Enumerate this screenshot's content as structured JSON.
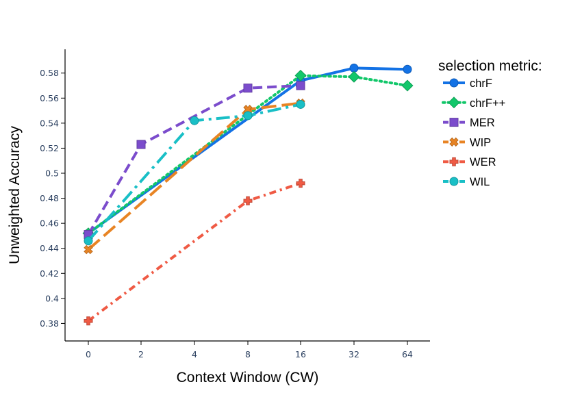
{
  "chart_data": {
    "type": "line",
    "title": "",
    "xlabel": "Context Window (CW)",
    "ylabel": "Unweighted Accuracy",
    "categories": [
      "0",
      "2",
      "4",
      "8",
      "16",
      "32",
      "64"
    ],
    "yticks": [
      0.38,
      0.4,
      0.42,
      0.44,
      0.46,
      0.48,
      0.5,
      0.52,
      0.54,
      0.56,
      0.58
    ],
    "ytick_labels": [
      "0.38",
      "0.4",
      "0.42",
      "0.44",
      "0.46",
      "0.48",
      "0.5",
      "0.52",
      "0.54",
      "0.56",
      "0.58"
    ],
    "ylim": [
      0.366,
      0.599
    ],
    "legend": {
      "title": "selection metric:",
      "position": "right"
    },
    "series": [
      {
        "name": "chrF",
        "color": "#1372e5",
        "marker": "circle",
        "dash": "solid",
        "values": [
          0.452,
          null,
          null,
          null,
          0.574,
          0.584,
          0.583
        ]
      },
      {
        "name": "chrF++",
        "color": "#12c76a",
        "marker": "diamond",
        "dash": "dot",
        "values": [
          0.452,
          null,
          null,
          null,
          0.578,
          0.577,
          0.57
        ]
      },
      {
        "name": "MER",
        "color": "#7b4ccc",
        "marker": "square",
        "dash": "dash",
        "values": [
          0.451,
          0.523,
          null,
          0.568,
          0.57,
          null,
          null
        ]
      },
      {
        "name": "WIP",
        "color": "#e88424",
        "marker": "x",
        "dash": "longdash",
        "values": [
          0.439,
          null,
          null,
          0.551,
          0.556,
          null,
          null
        ]
      },
      {
        "name": "WER",
        "color": "#ef5a44",
        "marker": "cross",
        "dash": "dashdot",
        "values": [
          0.382,
          null,
          null,
          0.478,
          0.492,
          null,
          null
        ]
      },
      {
        "name": "WIL",
        "color": "#19bfc6",
        "marker": "circle",
        "dash": "longdashdot",
        "values": [
          0.446,
          null,
          0.542,
          0.546,
          0.555,
          null,
          null
        ]
      }
    ]
  }
}
